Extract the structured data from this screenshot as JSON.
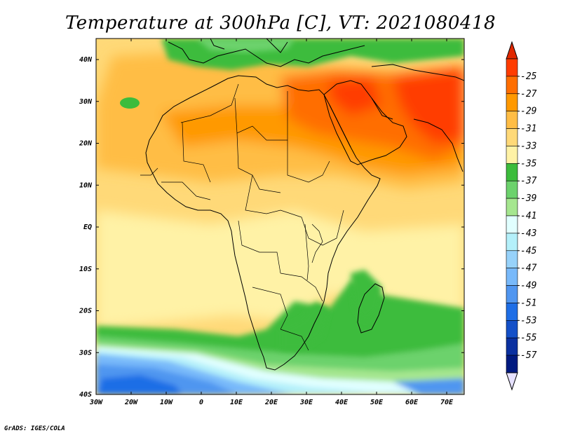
{
  "title": "Temperature at 300hPa [C], VT: 2021080418",
  "credit": "GrADS: IGES/COLA",
  "lat_ticks": [
    "40N",
    "30N",
    "20N",
    "10N",
    "EQ",
    "10S",
    "20S",
    "30S",
    "40S"
  ],
  "lon_ticks": [
    "30W",
    "20W",
    "10W",
    "0",
    "10E",
    "20E",
    "30E",
    "40E",
    "50E",
    "60E",
    "70E"
  ],
  "colorbar": {
    "labels": [
      "-25",
      "-27",
      "-29",
      "-31",
      "-33",
      "-35",
      "-37",
      "-39",
      "-41",
      "-43",
      "-45",
      "-47",
      "-49",
      "-51",
      "-53",
      "-55",
      "-57"
    ],
    "colors": [
      "#ff3c00",
      "#ff6e00",
      "#ff9900",
      "#ffbd45",
      "#ffd978",
      "#fff2a6",
      "#3cbc3c",
      "#6cd26c",
      "#a5e68f",
      "#e1ffff",
      "#b4f0fa",
      "#97d2fa",
      "#78b9fa",
      "#5096f0",
      "#1e6ee6",
      "#1450c8",
      "#0a30a0",
      "#001a80"
    ],
    "top_arrow_color": "#e12800",
    "bottom_arrow_color": "#e6e1ff"
  }
}
